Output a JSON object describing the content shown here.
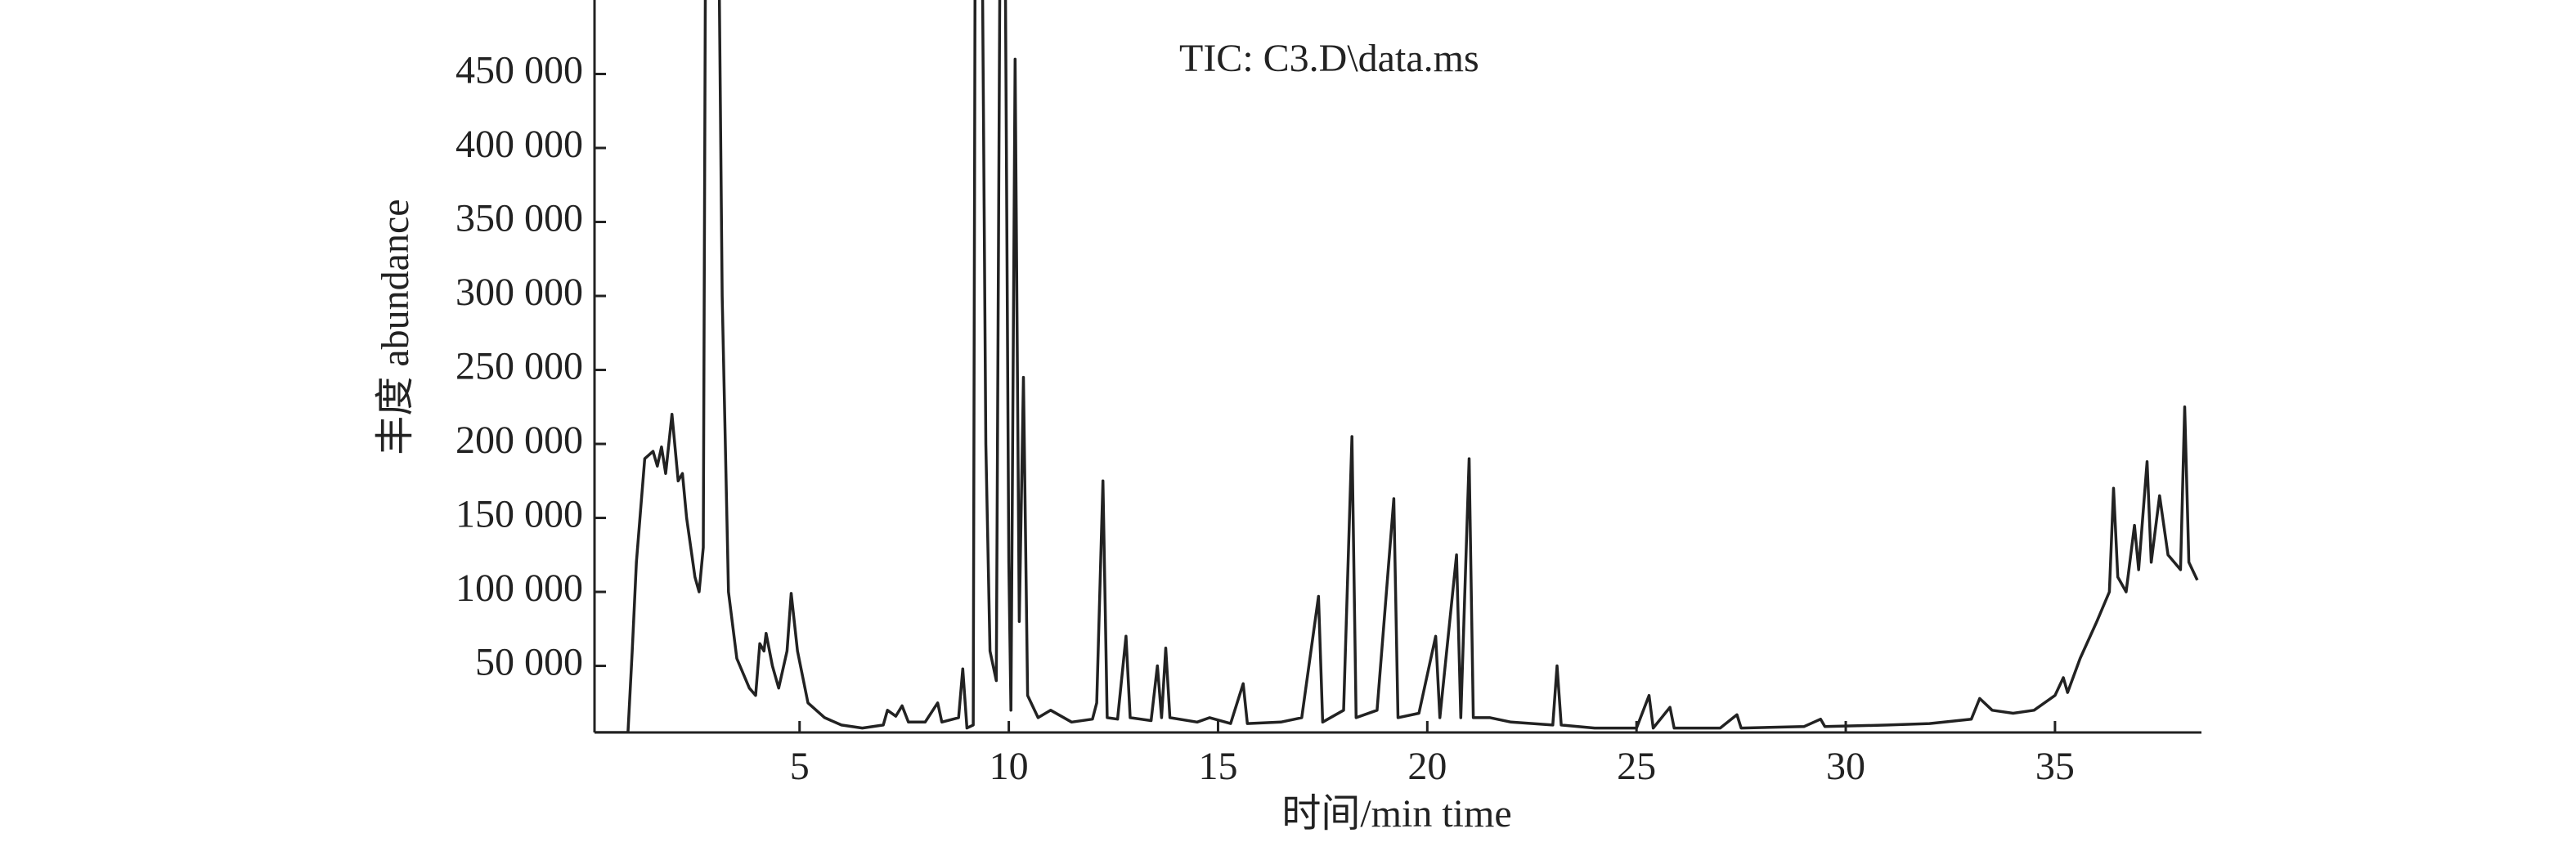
{
  "chart_data": {
    "type": "line",
    "annotation": "TIC: C3.D\\data.ms",
    "x_label": "时间/min time",
    "y_label": "丰度 abundance",
    "color": "#222222",
    "xlim": [
      0.1,
      38.5
    ],
    "ylim": [
      5000,
      500000
    ],
    "xticks": [
      5,
      10,
      15,
      20,
      25,
      30,
      35
    ],
    "yticks": [
      {
        "value": 50000,
        "label": "50 000"
      },
      {
        "value": 100000,
        "label": "100 000"
      },
      {
        "value": 150000,
        "label": "150 000"
      },
      {
        "value": 200000,
        "label": "200 000"
      },
      {
        "value": 250000,
        "label": "250 000"
      },
      {
        "value": 300000,
        "label": "300 000"
      },
      {
        "value": 350000,
        "label": "350 000"
      },
      {
        "value": 400000,
        "label": "400 000"
      },
      {
        "value": 450000,
        "label": "450 000"
      }
    ],
    "x": [
      0.1,
      0.9,
      1.0,
      1.1,
      1.3,
      1.5,
      1.6,
      1.7,
      1.8,
      1.95,
      2.1,
      2.2,
      2.3,
      2.5,
      2.6,
      2.7,
      2.75,
      2.9,
      3.05,
      3.15,
      3.3,
      3.5,
      3.8,
      3.95,
      4.05,
      4.15,
      4.2,
      4.35,
      4.5,
      4.7,
      4.8,
      4.95,
      5.2,
      5.6,
      6,
      6.5,
      7,
      7.1,
      7.3,
      7.45,
      7.6,
      8,
      8.3,
      8.4,
      8.8,
      8.9,
      9.0,
      9.15,
      9.2,
      9.35,
      9.45,
      9.55,
      9.7,
      9.8,
      9.9,
      10.0,
      10.05,
      10.15,
      10.25,
      10.35,
      10.45,
      10.7,
      11,
      11.5,
      12,
      12.1,
      12.25,
      12.35,
      12.6,
      12.8,
      12.9,
      13.4,
      13.55,
      13.65,
      13.75,
      13.85,
      14.5,
      14.8,
      15.3,
      15.6,
      15.7,
      16.5,
      17,
      17.4,
      17.5,
      18,
      18.2,
      18.3,
      18.8,
      19.2,
      19.3,
      19.8,
      20.2,
      20.3,
      20.7,
      20.8,
      21.0,
      21.1,
      21.5,
      22,
      23,
      23.1,
      23.2,
      24,
      25,
      25.3,
      25.4,
      25.8,
      25.9,
      27,
      27.4,
      27.5,
      29,
      29.4,
      29.5,
      31,
      32,
      33,
      33.2,
      33.5,
      34,
      34.5,
      35,
      35.2,
      35.3,
      35.6,
      36,
      36.3,
      36.4,
      36.5,
      36.7,
      36.9,
      37.0,
      37.2,
      37.3,
      37.5,
      37.7,
      38.0,
      38.1,
      38.2,
      38.4
    ],
    "values": [
      5000,
      5000,
      60000,
      120000,
      190000,
      195000,
      185000,
      198000,
      180000,
      220000,
      175000,
      180000,
      150000,
      110000,
      100000,
      130000,
      520000,
      600000,
      600000,
      300000,
      100000,
      55000,
      35000,
      30000,
      65000,
      60000,
      72000,
      50000,
      35000,
      60000,
      99000,
      60000,
      25000,
      15000,
      10000,
      8000,
      10000,
      20000,
      16000,
      23000,
      12000,
      12000,
      25000,
      12000,
      15000,
      48000,
      8000,
      10000,
      600000,
      600000,
      200000,
      60000,
      40000,
      600000,
      600000,
      120000,
      20000,
      460000,
      80000,
      245000,
      30000,
      15000,
      20000,
      12000,
      14000,
      25000,
      175000,
      15000,
      14000,
      70000,
      15000,
      13000,
      50000,
      15000,
      62000,
      15000,
      12000,
      15000,
      11000,
      38000,
      11000,
      12000,
      15000,
      97000,
      12000,
      20000,
      205000,
      15000,
      20000,
      163000,
      15000,
      18000,
      70000,
      15000,
      125000,
      15000,
      190000,
      15000,
      15000,
      12000,
      10000,
      50000,
      10000,
      8000,
      8000,
      30000,
      8000,
      22000,
      8000,
      8000,
      17000,
      8000,
      9000,
      14000,
      9000,
      10000,
      11000,
      14000,
      28000,
      20000,
      18000,
      20000,
      30000,
      42000,
      32000,
      55000,
      80000,
      100000,
      170000,
      110000,
      100000,
      145000,
      115000,
      188000,
      120000,
      165000,
      125000,
      115000,
      225000,
      120000,
      108000
    ]
  }
}
